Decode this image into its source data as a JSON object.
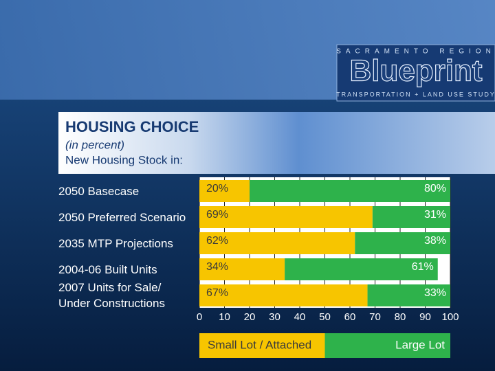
{
  "header": {
    "region": "SACRAMENTO REGION",
    "brand": "Blueprint",
    "study": "TRANSPORTATION + LAND USE STUDY"
  },
  "chart_data": {
    "type": "stacked-bar-horizontal",
    "title": "HOUSING CHOICE",
    "subtitle": "(in percent)",
    "caption": "New Housing Stock in:",
    "categories": [
      "2050 Basecase",
      "2050 Preferred Scenario",
      "2035 MTP Projections",
      "2004-06 Built Units",
      "2007 Units for Sale/\nUnder Constructions"
    ],
    "series": [
      {
        "name": "Small Lot / Attached",
        "color": "#f7c500",
        "values": [
          20,
          69,
          62,
          34,
          67
        ],
        "value_labels": [
          "20%",
          "69%",
          "62%",
          "34%",
          "67%"
        ]
      },
      {
        "name": "Large Lot",
        "color": "#2eb24b",
        "values": [
          80,
          31,
          38,
          61,
          33
        ],
        "value_labels": [
          "80%",
          "31%",
          "38%",
          "61%",
          "33%"
        ]
      }
    ],
    "xlim": [
      0,
      100
    ],
    "xticks": [
      0,
      10,
      20,
      30,
      40,
      50,
      60,
      70,
      80,
      90,
      100
    ],
    "grid": true
  }
}
